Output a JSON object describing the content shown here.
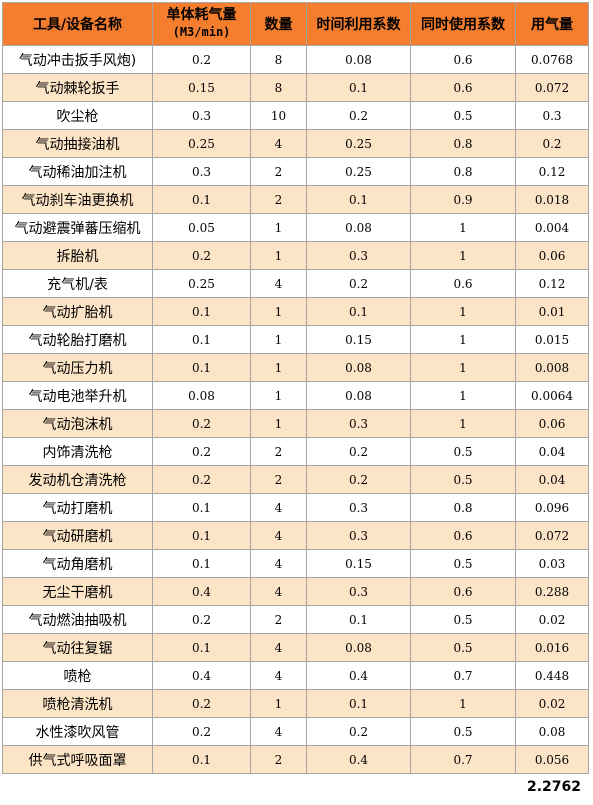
{
  "table": {
    "headers": {
      "name": "工具/设备名称",
      "unit_consumption": "单体耗气量",
      "unit_consumption_unit": "(M3/min)",
      "quantity": "数量",
      "time_util": "时间利用系数",
      "simultaneous": "同时使用系数",
      "air_usage": "用气量"
    },
    "rows": [
      {
        "name": "气动冲击扳手风炮)",
        "unit": "0.2",
        "qty": "8",
        "time": "0.08",
        "simul": "0.6",
        "usage": "0.0768"
      },
      {
        "name": "气动棘轮扳手",
        "unit": "0.15",
        "qty": "8",
        "time": "0.1",
        "simul": "0.6",
        "usage": "0.072"
      },
      {
        "name": "吹尘枪",
        "unit": "0.3",
        "qty": "10",
        "time": "0.2",
        "simul": "0.5",
        "usage": "0.3"
      },
      {
        "name": "气动抽接油机",
        "unit": "0.25",
        "qty": "4",
        "time": "0.25",
        "simul": "0.8",
        "usage": "0.2"
      },
      {
        "name": "气动稀油加注机",
        "unit": "0.3",
        "qty": "2",
        "time": "0.25",
        "simul": "0.8",
        "usage": "0.12"
      },
      {
        "name": "气动刹车油更换机",
        "unit": "0.1",
        "qty": "2",
        "time": "0.1",
        "simul": "0.9",
        "usage": "0.018"
      },
      {
        "name": "气动避震弹蕃压缩机",
        "unit": "0.05",
        "qty": "1",
        "time": "0.08",
        "simul": "1",
        "usage": "0.004"
      },
      {
        "name": "拆胎机",
        "unit": "0.2",
        "qty": "1",
        "time": "0.3",
        "simul": "1",
        "usage": "0.06"
      },
      {
        "name": "充气机/表",
        "unit": "0.25",
        "qty": "4",
        "time": "0.2",
        "simul": "0.6",
        "usage": "0.12"
      },
      {
        "name": "气动扩胎机",
        "unit": "0.1",
        "qty": "1",
        "time": "0.1",
        "simul": "1",
        "usage": "0.01"
      },
      {
        "name": "气动轮胎打磨机",
        "unit": "0.1",
        "qty": "1",
        "time": "0.15",
        "simul": "1",
        "usage": "0.015"
      },
      {
        "name": "气动压力机",
        "unit": "0.1",
        "qty": "1",
        "time": "0.08",
        "simul": "1",
        "usage": "0.008"
      },
      {
        "name": "气动电池举升机",
        "unit": "0.08",
        "qty": "1",
        "time": "0.08",
        "simul": "1",
        "usage": "0.0064"
      },
      {
        "name": "气动泡沫机",
        "unit": "0.2",
        "qty": "1",
        "time": "0.3",
        "simul": "1",
        "usage": "0.06"
      },
      {
        "name": "内饰清洗枪",
        "unit": "0.2",
        "qty": "2",
        "time": "0.2",
        "simul": "0.5",
        "usage": "0.04"
      },
      {
        "name": "发动机仓清洗枪",
        "unit": "0.2",
        "qty": "2",
        "time": "0.2",
        "simul": "0.5",
        "usage": "0.04"
      },
      {
        "name": "气动打磨机",
        "unit": "0.1",
        "qty": "4",
        "time": "0.3",
        "simul": "0.8",
        "usage": "0.096"
      },
      {
        "name": "气动研磨机",
        "unit": "0.1",
        "qty": "4",
        "time": "0.3",
        "simul": "0.6",
        "usage": "0.072"
      },
      {
        "name": "气动角磨机",
        "unit": "0.1",
        "qty": "4",
        "time": "0.15",
        "simul": "0.5",
        "usage": "0.03"
      },
      {
        "name": "无尘干磨机",
        "unit": "0.4",
        "qty": "4",
        "time": "0.3",
        "simul": "0.6",
        "usage": "0.288"
      },
      {
        "name": "气动燃油抽吸机",
        "unit": "0.2",
        "qty": "2",
        "time": "0.1",
        "simul": "0.5",
        "usage": "0.02"
      },
      {
        "name": "气动往复锯",
        "unit": "0.1",
        "qty": "4",
        "time": "0.08",
        "simul": "0.5",
        "usage": "0.016"
      },
      {
        "name": "喷枪",
        "unit": "0.4",
        "qty": "4",
        "time": "0.4",
        "simul": "0.7",
        "usage": "0.448"
      },
      {
        "name": "喷枪清洗机",
        "unit": "0.2",
        "qty": "1",
        "time": "0.1",
        "simul": "1",
        "usage": "0.02"
      },
      {
        "name": "水性漆吹风管",
        "unit": "0.2",
        "qty": "4",
        "time": "0.2",
        "simul": "0.5",
        "usage": "0.08"
      },
      {
        "name": "供气式呼吸面罩",
        "unit": "0.1",
        "qty": "2",
        "time": "0.4",
        "simul": "0.7",
        "usage": "0.056"
      }
    ],
    "total": "2.2762"
  },
  "colors": {
    "header_bg": "#f57e2e",
    "row_odd_bg": "#ffffff",
    "row_even_bg": "#fce4c6",
    "border": "#a6a6a6"
  }
}
